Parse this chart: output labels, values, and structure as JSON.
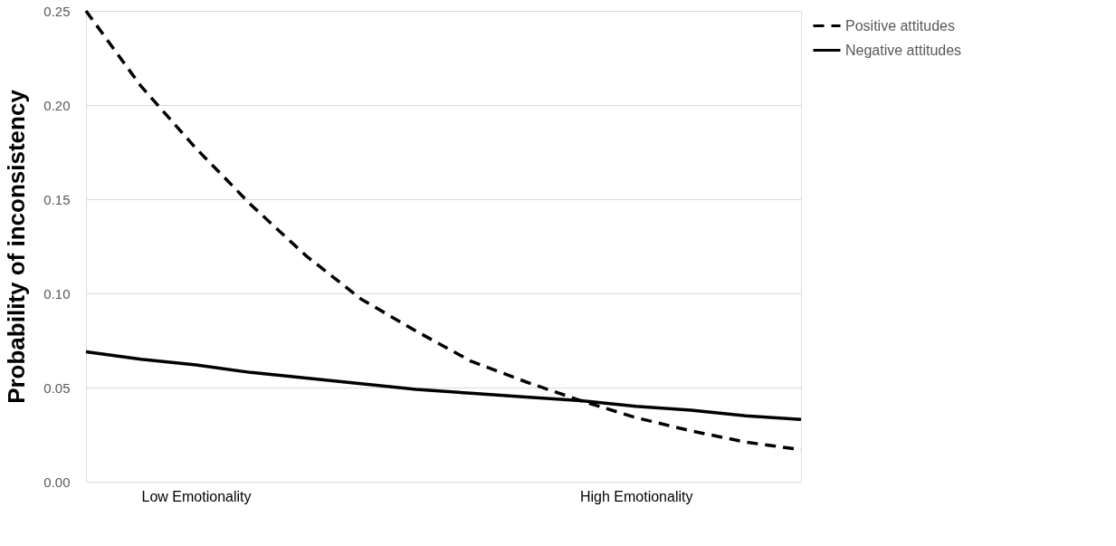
{
  "chart_data": {
    "type": "line",
    "ylabel": "Probability of inconsistency",
    "categories": [
      null,
      null,
      "Low Emotionality",
      null,
      null,
      null,
      null,
      null,
      null,
      null,
      "High Emotionality",
      null,
      null,
      null
    ],
    "ylim": [
      0,
      0.25
    ],
    "yticks": [
      {
        "value": 0,
        "label": "0.00"
      },
      0.05,
      {
        "value": 0.1,
        "label": "0.10"
      },
      0.15,
      {
        "value": 0.2,
        "label": "0.20"
      },
      0.25
    ],
    "series": [
      {
        "name": "Positive attitudes",
        "color": "#000000",
        "line_style": "dashed",
        "values": [
          0.25,
          0.21,
          0.177,
          0.147,
          0.12,
          0.097,
          0.08,
          0.064,
          0.053,
          0.043,
          0.034,
          0.027,
          0.021,
          0.017
        ]
      },
      {
        "name": "Negative attitudes",
        "color": "#000000",
        "line_style": "solid",
        "values": [
          0.069,
          0.065,
          0.062,
          0.058,
          0.055,
          0.052,
          0.049,
          0.047,
          0.045,
          0.043,
          0.04,
          0.038,
          0.035,
          0.033
        ]
      }
    ],
    "grid": "y",
    "legend": "right",
    "marker": "none"
  }
}
